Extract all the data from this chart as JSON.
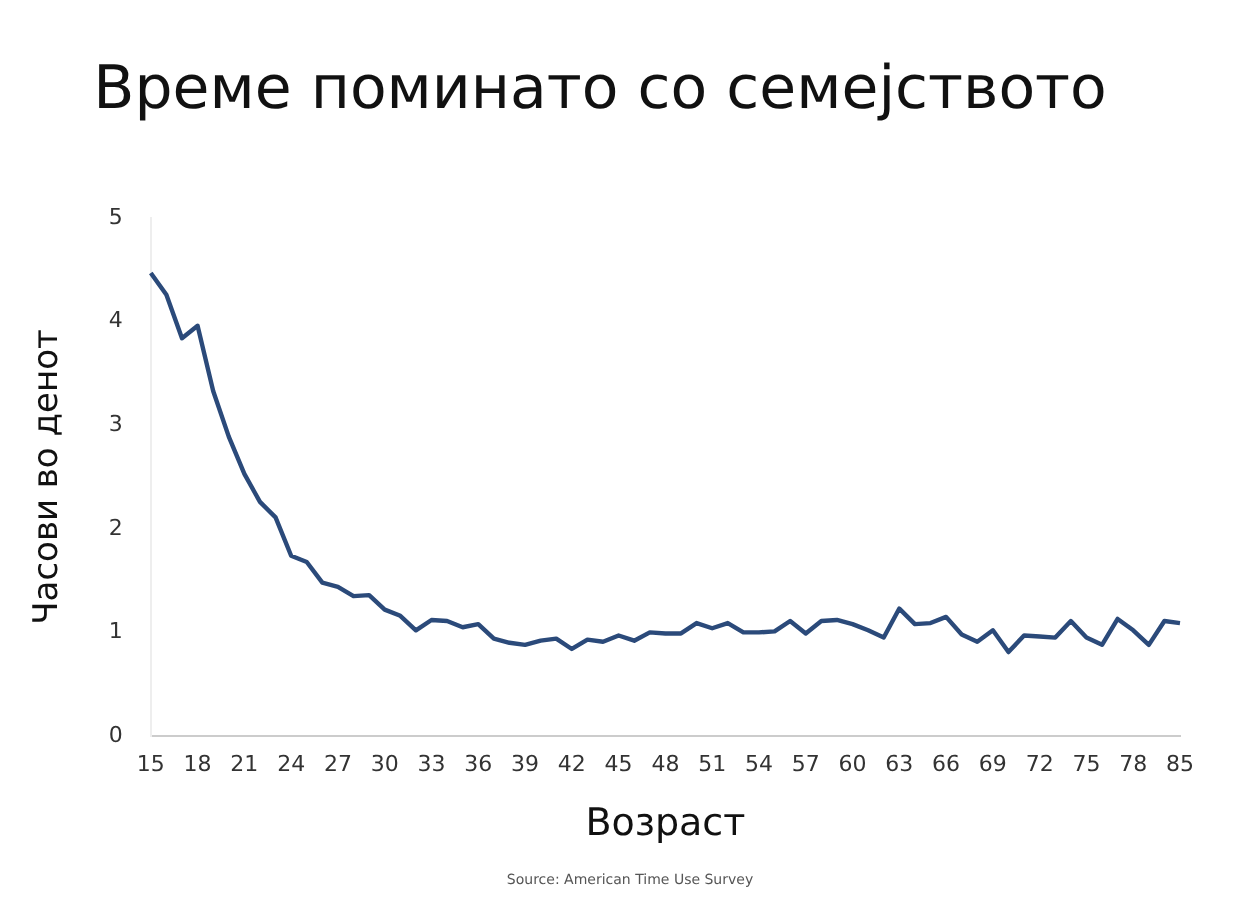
{
  "chart_data": {
    "type": "line",
    "title": "Време поминато со семејството",
    "xlabel": "Возраст",
    "ylabel": "Часови во денот",
    "categories": [
      "15",
      null,
      null,
      "18",
      null,
      null,
      "21",
      null,
      null,
      "24",
      null,
      null,
      "27",
      null,
      null,
      "30",
      null,
      null,
      "33",
      null,
      null,
      "36",
      null,
      null,
      "39",
      null,
      null,
      "42",
      null,
      null,
      "45",
      null,
      null,
      "48",
      null,
      null,
      "51",
      null,
      null,
      "54",
      null,
      null,
      "57",
      null,
      null,
      "60",
      null,
      null,
      "63",
      null,
      null,
      "66",
      null,
      null,
      "69",
      null,
      null,
      "72",
      null,
      null,
      "75",
      null,
      null,
      "78",
      null,
      null,
      "85"
    ],
    "series": [
      {
        "color": "#2b4a7a",
        "values": [
          4.47,
          4.26,
          3.84,
          3.96,
          3.33,
          2.89,
          2.53,
          2.26,
          2.11,
          1.74,
          1.68,
          1.48,
          1.44,
          1.35,
          1.36,
          1.22,
          1.16,
          1.02,
          1.12,
          1.11,
          1.05,
          1.08,
          0.94,
          0.9,
          0.88,
          0.92,
          0.94,
          0.84,
          0.93,
          0.91,
          0.97,
          0.92,
          1.0,
          0.99,
          0.99,
          1.09,
          1.04,
          1.09,
          1.0,
          1.0,
          1.01,
          1.11,
          0.99,
          1.11,
          1.12,
          1.08,
          1.02,
          0.95,
          1.23,
          1.08,
          1.09,
          1.15,
          0.98,
          0.91,
          1.02,
          0.81,
          0.97,
          0.96,
          0.95,
          1.11,
          0.95,
          0.88,
          1.13,
          1.02,
          0.88,
          1.11,
          1.09
        ]
      }
    ],
    "ylim": [
      0,
      5
    ],
    "yticks": [
      0,
      1,
      2,
      3,
      4,
      5
    ],
    "grid": false,
    "legend": false,
    "marker": "none",
    "line_style": "solid",
    "annotations": [
      "Source: American Time Use Survey"
    ]
  }
}
